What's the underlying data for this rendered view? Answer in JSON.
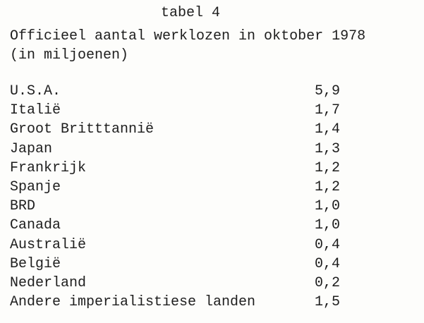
{
  "document": {
    "title": "tabel 4",
    "subtitle_line1": "Officieel aantal werklozen in oktober 1978",
    "subtitle_line2": "(in miljoenen)",
    "rows": [
      {
        "country": "U.S.A.",
        "value": "5,9"
      },
      {
        "country": "Italië",
        "value": "1,7"
      },
      {
        "country": "Groot Britttannië",
        "value": "1,4"
      },
      {
        "country": "Japan",
        "value": "1,3"
      },
      {
        "country": "Frankrijk",
        "value": "1,2"
      },
      {
        "country": "Spanje",
        "value": "1,2"
      },
      {
        "country": "BRD",
        "value": "1,0"
      },
      {
        "country": "Canada",
        "value": "1,0"
      },
      {
        "country": "Australië",
        "value": "0,4"
      },
      {
        "country": "België",
        "value": "0,4"
      },
      {
        "country": "Nederland",
        "value": "0,2"
      },
      {
        "country": "Andere imperialistiese landen",
        "value": "1,5"
      }
    ]
  }
}
